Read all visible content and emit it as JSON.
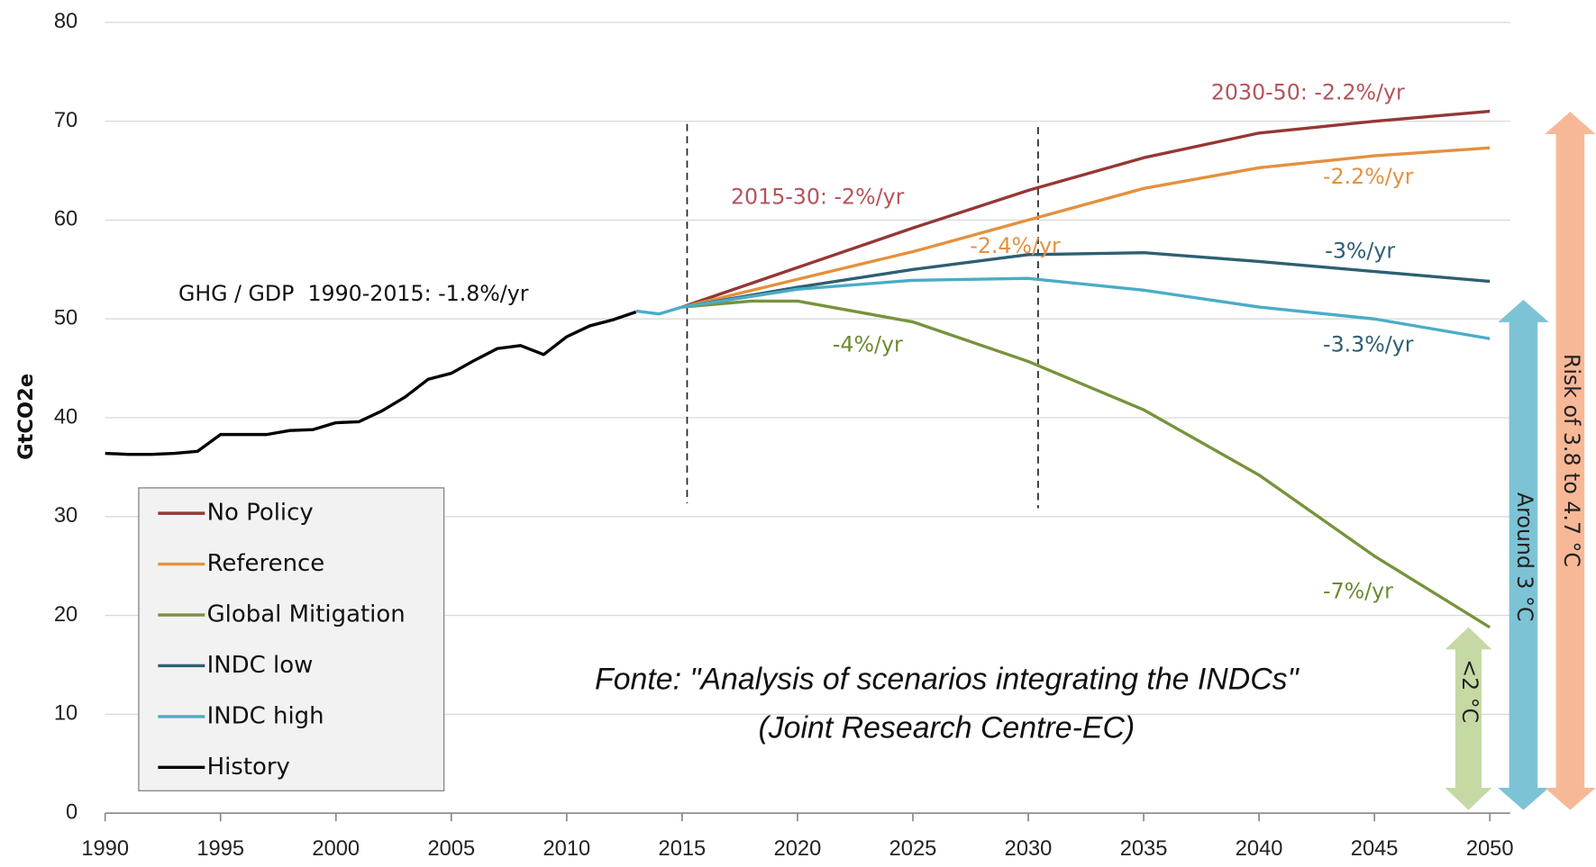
{
  "chart_data": {
    "type": "line",
    "ylabel": "GtCO2e",
    "xlim": [
      1990,
      2050
    ],
    "xticks": [
      1990,
      1995,
      2000,
      2005,
      2010,
      2015,
      2020,
      2025,
      2030,
      2035,
      2040,
      2045,
      2050
    ],
    "ylim": [
      0,
      80
    ],
    "yticks": [
      0,
      10,
      20,
      30,
      40,
      50,
      60,
      70,
      80
    ],
    "grid": true,
    "legend": "lower left",
    "series": [
      {
        "name": "No Policy",
        "color": "#953735",
        "x": [
          2015,
          2020,
          2025,
          2030,
          2035,
          2040,
          2045,
          2050
        ],
        "values": [
          51.2,
          55.2,
          59.2,
          63.0,
          66.3,
          68.8,
          70.0,
          71.0
        ]
      },
      {
        "name": "Reference",
        "color": "#e3913f",
        "x": [
          2015,
          2020,
          2025,
          2030,
          2035,
          2040,
          2045,
          2050
        ],
        "values": [
          51.2,
          54.0,
          56.8,
          60.0,
          63.2,
          65.3,
          66.5,
          67.3
        ]
      },
      {
        "name": "Global Mitigation",
        "color": "#77933c",
        "x": [
          2015,
          2018,
          2020,
          2025,
          2030,
          2035,
          2040,
          2045,
          2050
        ],
        "values": [
          51.2,
          51.8,
          51.8,
          49.7,
          45.7,
          40.8,
          34.2,
          26.0,
          18.8
        ]
      },
      {
        "name": "INDC low",
        "color": "#2e5f73",
        "x": [
          2015,
          2020,
          2025,
          2030,
          2035,
          2040,
          2045,
          2050
        ],
        "values": [
          51.2,
          53.2,
          55.0,
          56.5,
          56.7,
          55.8,
          54.8,
          53.8
        ]
      },
      {
        "name": "INDC high",
        "color": "#4bacc6",
        "x": [
          2013,
          2014,
          2015,
          2020,
          2025,
          2030,
          2035,
          2040,
          2045,
          2050
        ],
        "values": [
          50.8,
          50.5,
          51.2,
          53.0,
          53.9,
          54.1,
          52.9,
          51.2,
          50.0,
          48.0
        ]
      },
      {
        "name": "History",
        "color": "#000000",
        "x": [
          1990,
          1991,
          1992,
          1993,
          1994,
          1995,
          1996,
          1997,
          1998,
          1999,
          2000,
          2001,
          2002,
          2003,
          2004,
          2005,
          2006,
          2007,
          2008,
          2009,
          2010,
          2011,
          2012,
          2013
        ],
        "values": [
          36.4,
          36.3,
          36.3,
          36.4,
          36.6,
          38.3,
          38.3,
          38.3,
          38.7,
          38.8,
          39.5,
          39.6,
          40.7,
          42.1,
          43.9,
          44.5,
          45.8,
          47.0,
          47.3,
          46.4,
          48.2,
          49.3,
          49.9,
          50.7
        ]
      }
    ],
    "annotations": [
      {
        "text": "GHG / GDP  1990-2015: -1.8%/yr",
        "color": "#111111"
      },
      {
        "text": "2015-30: -2%/yr",
        "color": "#b4545a"
      },
      {
        "text": "2030-50: -2.2%/yr",
        "color": "#b4545a"
      },
      {
        "text": "-2.4%/yr",
        "color": "#e3913f"
      },
      {
        "text": "-2.2%/yr",
        "color": "#e3913f"
      },
      {
        "text": "-3%/yr",
        "color": "#2e5f73"
      },
      {
        "text": "-3.3%/yr",
        "color": "#2e5f73"
      },
      {
        "text": "-4%/yr",
        "color": "#6b8a32"
      },
      {
        "text": "-7%/yr",
        "color": "#6b8a32"
      }
    ],
    "arrows": [
      {
        "label": "<2 °C",
        "color": "#c6d9a4"
      },
      {
        "label": "Around 3 °C",
        "color": "#7cc3d6"
      },
      {
        "label": "Risk of 3.8 to 4.7 °C",
        "color": "#f7b897"
      }
    ],
    "source": [
      "Fonte: \"Analysis of scenarios integrating the INDCs\"",
      "(Joint Research Centre-EC)"
    ]
  }
}
